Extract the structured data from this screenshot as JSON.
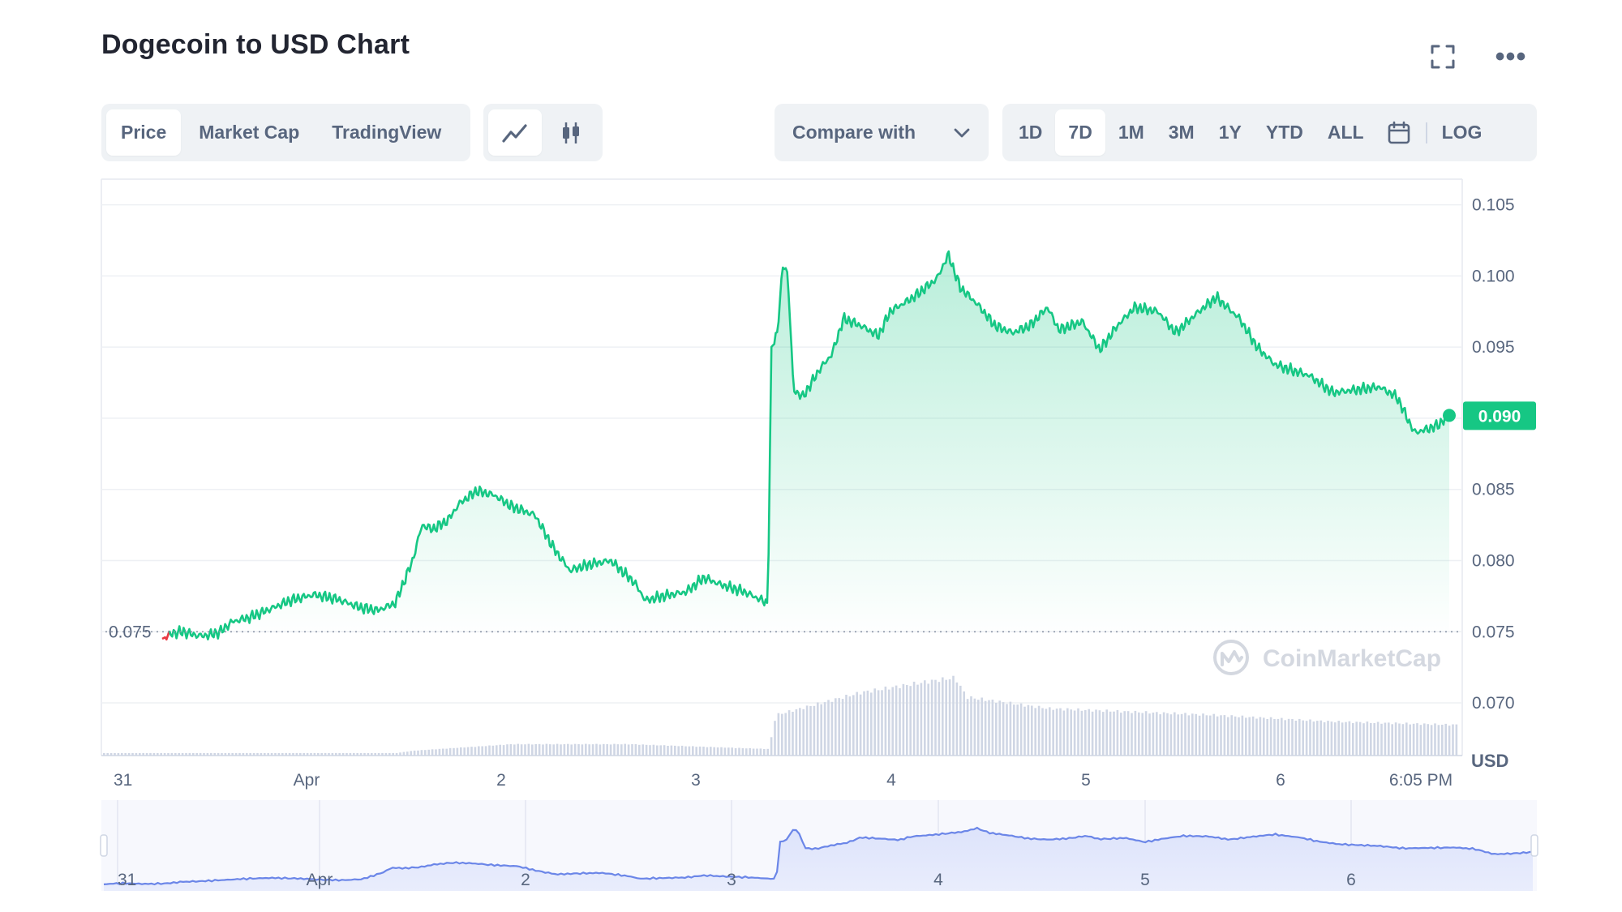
{
  "header": {
    "title": "Dogecoin to USD Chart"
  },
  "icons": {
    "fullscreen": "fullscreen-icon",
    "more": "more-icon"
  },
  "tabs": [
    {
      "label": "Price",
      "active": true
    },
    {
      "label": "Market Cap",
      "active": false
    },
    {
      "label": "TradingView",
      "active": false
    }
  ],
  "chart_type_buttons": [
    {
      "icon": "line-chart-icon",
      "active": true
    },
    {
      "icon": "candlestick-icon",
      "active": false
    }
  ],
  "compare": {
    "label": "Compare with"
  },
  "ranges": [
    {
      "label": "1D",
      "active": false
    },
    {
      "label": "7D",
      "active": true
    },
    {
      "label": "1M",
      "active": false
    },
    {
      "label": "3M",
      "active": false
    },
    {
      "label": "1Y",
      "active": false
    },
    {
      "label": "YTD",
      "active": false
    },
    {
      "label": "ALL",
      "active": false
    }
  ],
  "log_label": "LOG",
  "watermark": "CoinMarketCap",
  "colors": {
    "up": "#16c784",
    "down": "#ea3943",
    "volume": "#cfd6e4",
    "navigator": "#6b86e8",
    "text": "#58667e"
  },
  "chart_data": {
    "type": "line",
    "title": "Dogecoin to USD Chart",
    "unit": "USD",
    "y_ticks": [
      "0.105",
      "0.100",
      "0.095",
      "0.090",
      "0.085",
      "0.080",
      "0.075",
      "0.070"
    ],
    "ylim": [
      0.0663,
      0.1068
    ],
    "x_ticks": [
      "31",
      "Apr",
      "2",
      "3",
      "4",
      "5",
      "6",
      "6:05 PM"
    ],
    "reference_price": 0.075,
    "reference_label": "0.075",
    "current_price": 0.0902,
    "current_label": "0.090",
    "price_key_points": [
      [
        0,
        0.0745
      ],
      [
        0.9,
        0.0749
      ],
      [
        1.8,
        0.075
      ],
      [
        2.6,
        0.0748
      ],
      [
        3.4,
        0.0747
      ],
      [
        4.2,
        0.0748
      ],
      [
        5.0,
        0.075
      ],
      [
        6.0,
        0.0757
      ],
      [
        7.5,
        0.076
      ],
      [
        9,
        0.0765
      ],
      [
        11,
        0.0772
      ],
      [
        13,
        0.0776
      ],
      [
        15,
        0.0773
      ],
      [
        17,
        0.0767
      ],
      [
        18.5,
        0.0765
      ],
      [
        20,
        0.077
      ],
      [
        21.5,
        0.08
      ],
      [
        22.3,
        0.0825
      ],
      [
        23.2,
        0.0822
      ],
      [
        24.5,
        0.0828
      ],
      [
        25.5,
        0.084
      ],
      [
        27,
        0.0849
      ],
      [
        28.5,
        0.0846
      ],
      [
        30,
        0.0838
      ],
      [
        32,
        0.0832
      ],
      [
        33.5,
        0.081
      ],
      [
        35,
        0.0793
      ],
      [
        36.5,
        0.0797
      ],
      [
        38.5,
        0.08
      ],
      [
        40.5,
        0.0785
      ],
      [
        41.5,
        0.0772
      ],
      [
        43,
        0.0775
      ],
      [
        45,
        0.0778
      ],
      [
        46.5,
        0.0788
      ],
      [
        48,
        0.0783
      ],
      [
        50,
        0.0778
      ],
      [
        51.5,
        0.0772
      ],
      [
        52,
        0.077
      ],
      [
        52.3,
        0.095
      ],
      [
        52.8,
        0.096
      ],
      [
        53.3,
        0.1008
      ],
      [
        53.7,
        0.1002
      ],
      [
        54.2,
        0.092
      ],
      [
        55,
        0.0915
      ],
      [
        56.5,
        0.0935
      ],
      [
        57.5,
        0.0945
      ],
      [
        58.5,
        0.097
      ],
      [
        60,
        0.0965
      ],
      [
        61.5,
        0.0958
      ],
      [
        62.5,
        0.0975
      ],
      [
        64.5,
        0.0985
      ],
      [
        66.5,
        0.0998
      ],
      [
        67.5,
        0.1015
      ],
      [
        68.5,
        0.0992
      ],
      [
        70,
        0.098
      ],
      [
        71.5,
        0.0965
      ],
      [
        73,
        0.096
      ],
      [
        74.5,
        0.0965
      ],
      [
        76,
        0.0978
      ],
      [
        77,
        0.0962
      ],
      [
        79,
        0.0968
      ],
      [
        80.5,
        0.0948
      ],
      [
        82,
        0.0965
      ],
      [
        83.5,
        0.0978
      ],
      [
        85.5,
        0.0975
      ],
      [
        87,
        0.096
      ],
      [
        89,
        0.0975
      ],
      [
        90.5,
        0.0985
      ],
      [
        92.5,
        0.097
      ],
      [
        94,
        0.095
      ],
      [
        95.5,
        0.0938
      ],
      [
        96.5,
        0.0935
      ],
      [
        98.5,
        0.093
      ],
      [
        100.5,
        0.0918
      ],
      [
        102.5,
        0.092
      ],
      [
        104.5,
        0.0922
      ],
      [
        106,
        0.0915
      ],
      [
        107.5,
        0.089
      ],
      [
        108.5,
        0.0892
      ],
      [
        109.5,
        0.0895
      ],
      [
        110.5,
        0.0902
      ]
    ],
    "x_tick_hours": [
      0,
      14.5,
      38.5,
      62.5,
      86.5,
      110.5,
      134.5,
      152.5
    ],
    "volume_key_points": [
      [
        0,
        0.03
      ],
      [
        20,
        0.03
      ],
      [
        21.5,
        0.06
      ],
      [
        30,
        0.14
      ],
      [
        40,
        0.14
      ],
      [
        52,
        0.08
      ],
      [
        52.6,
        0.5
      ],
      [
        60,
        0.78
      ],
      [
        66,
        0.92
      ],
      [
        68,
        0.96
      ],
      [
        69,
        0.72
      ],
      [
        76,
        0.58
      ],
      [
        90,
        0.5
      ],
      [
        100,
        0.42
      ],
      [
        110.5,
        0.38
      ]
    ],
    "navigator_ticks": [
      "31",
      "Apr",
      "2",
      "3",
      "4",
      "5",
      "6"
    ]
  }
}
